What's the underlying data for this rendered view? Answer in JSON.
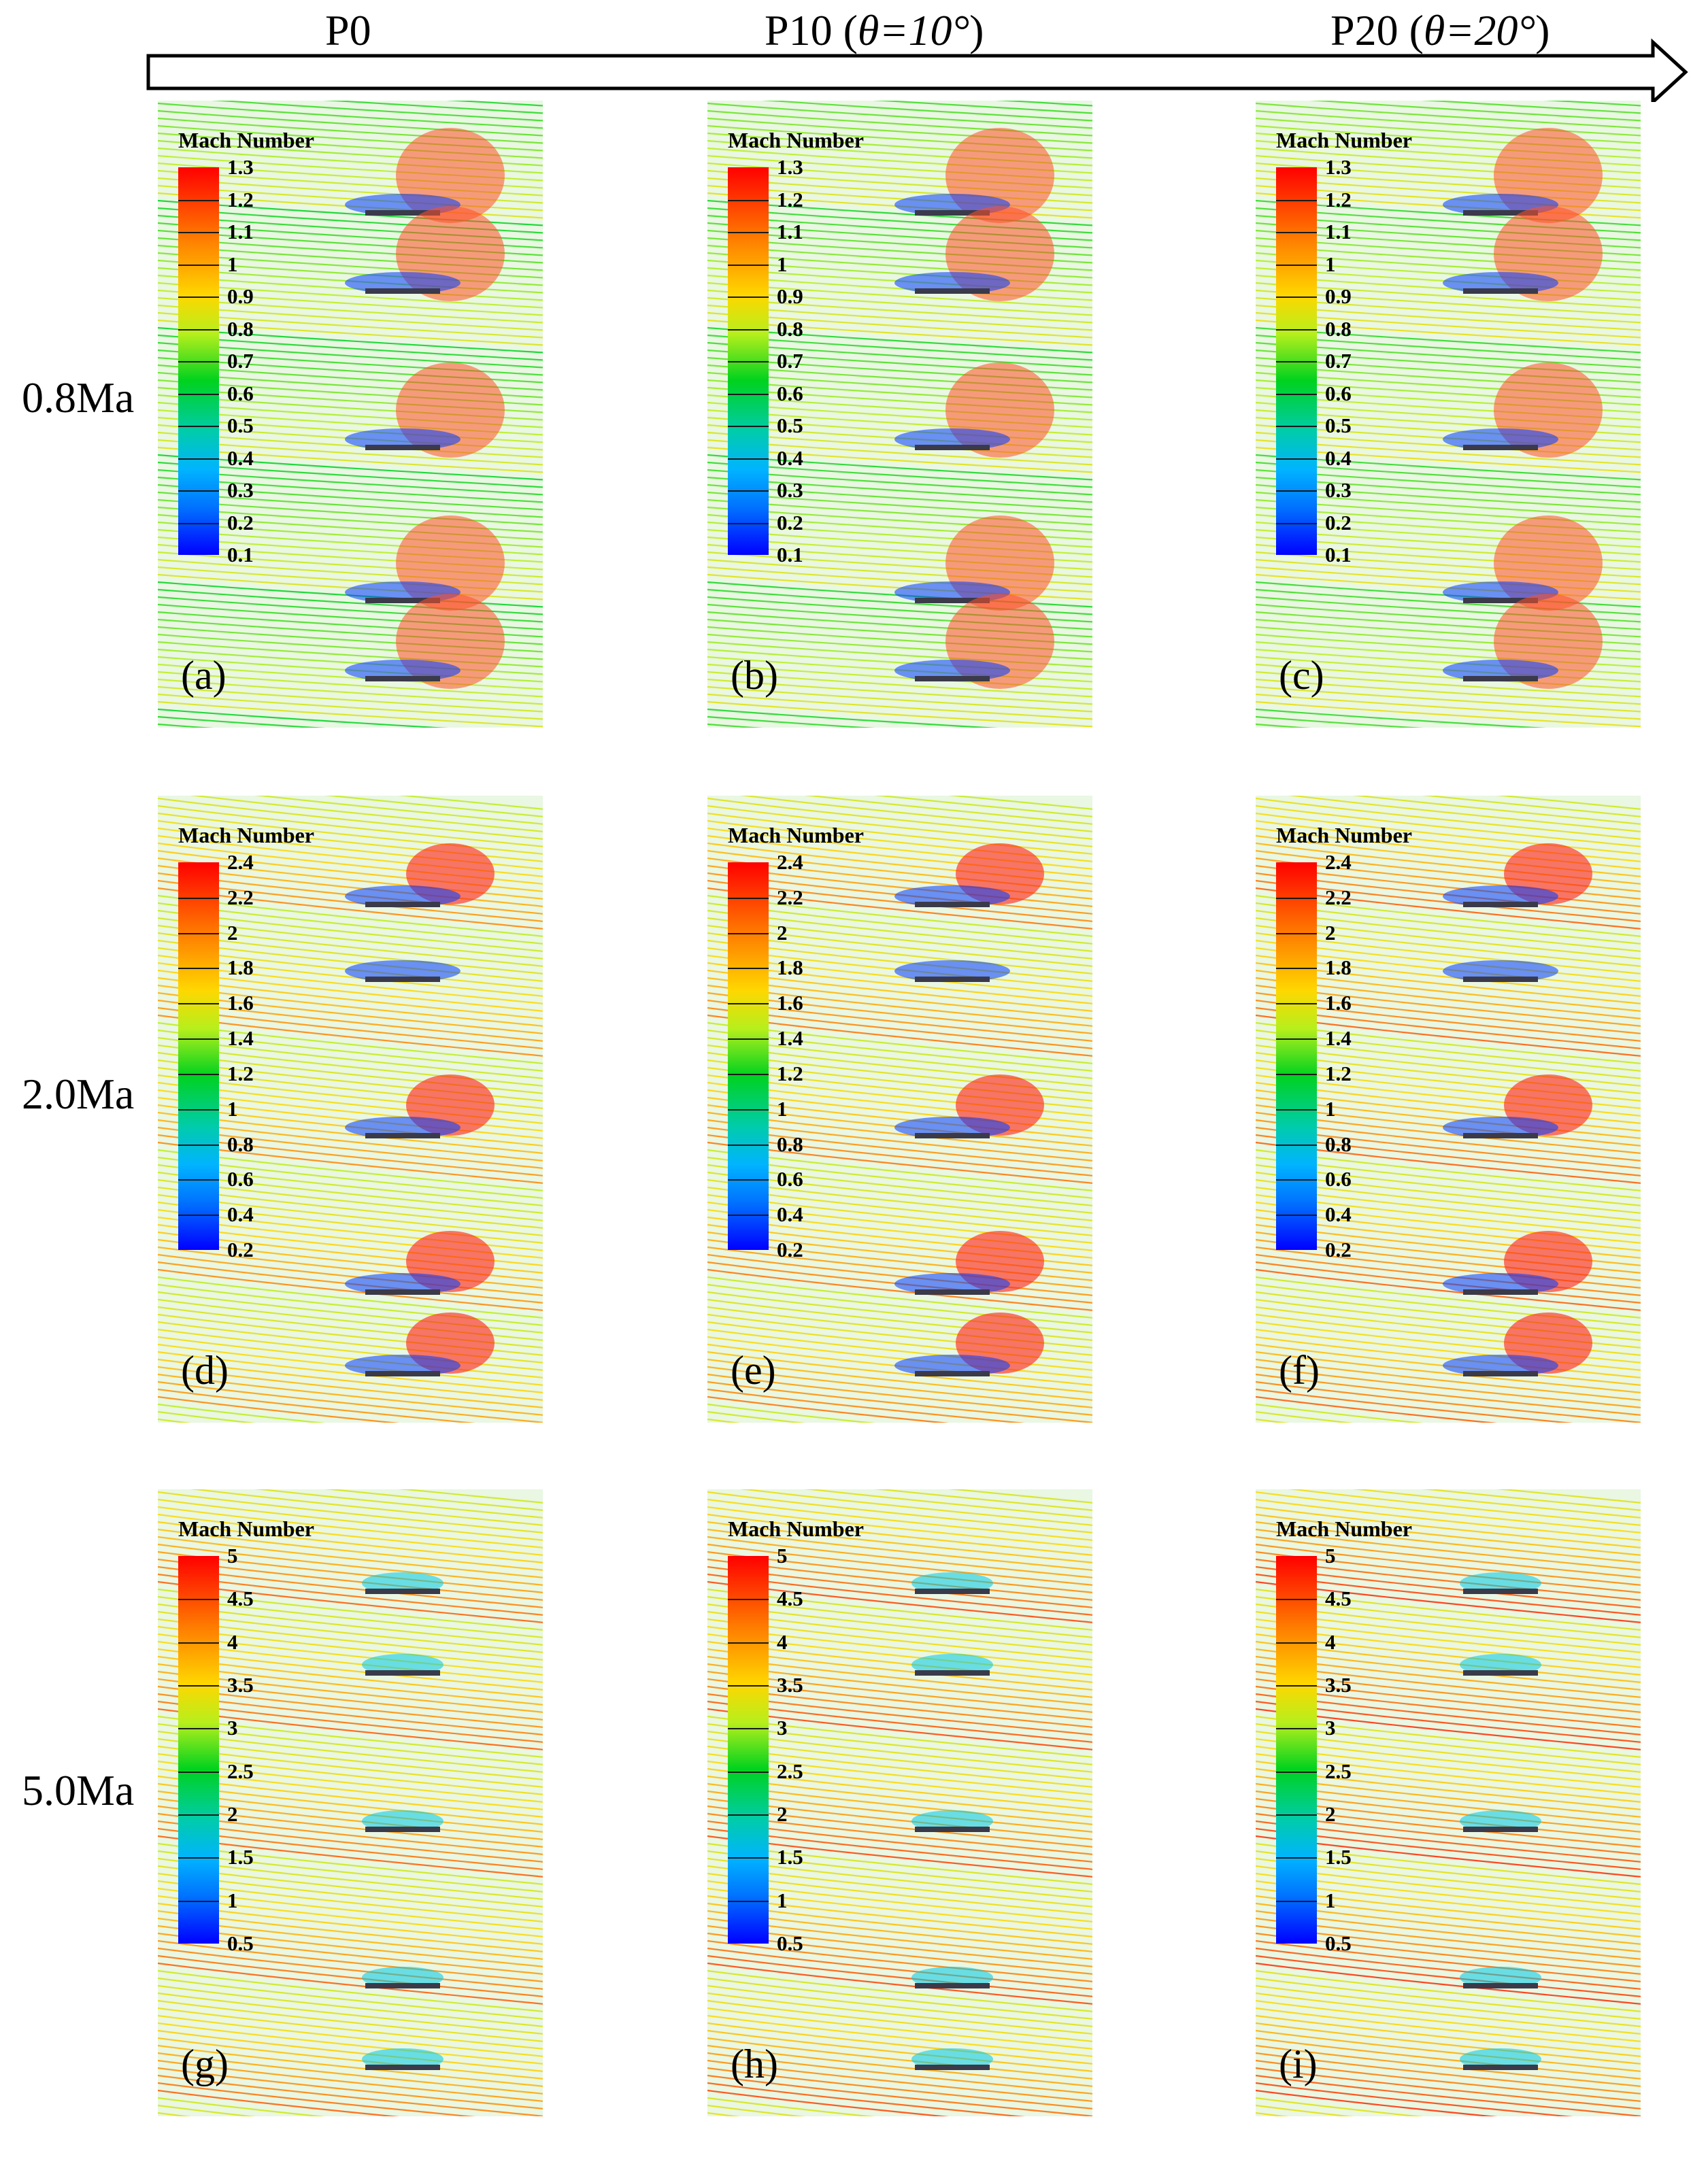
{
  "columns": [
    {
      "name": "P0",
      "theta": ""
    },
    {
      "name": "P10 (",
      "theta": "θ=10°",
      "close": ")"
    },
    {
      "name": "P20 (",
      "theta": "θ=20°",
      "close": ")"
    }
  ],
  "rows": [
    {
      "label": "0.8Ma",
      "legend_title": "Mach Number",
      "ticks": [
        "1.3",
        "1.2",
        "1.1",
        "1",
        "0.9",
        "0.8",
        "0.7",
        "0.6",
        "0.5",
        "0.4",
        "0.3",
        "0.2",
        "0.1"
      ],
      "panels": [
        "(a)",
        "(b)",
        "(c)"
      ]
    },
    {
      "label": "2.0Ma",
      "legend_title": "Mach Number",
      "ticks": [
        "2.4",
        "2.2",
        "2",
        "1.8",
        "1.6",
        "1.4",
        "1.2",
        "1",
        "0.8",
        "0.6",
        "0.4",
        "0.2"
      ],
      "panels": [
        "(d)",
        "(e)",
        "(f)"
      ]
    },
    {
      "label": "5.0Ma",
      "legend_title": "Mach Number",
      "ticks": [
        "5",
        "4.5",
        "4",
        "3.5",
        "3",
        "2.5",
        "2",
        "1.5",
        "1",
        "0.5"
      ],
      "panels": [
        "(g)",
        "(h)",
        "(i)"
      ]
    }
  ],
  "colors": {
    "low": "#0000ff",
    "mid": "#00d21e",
    "high": "#ff0000",
    "plate": "#3a3a4a"
  }
}
